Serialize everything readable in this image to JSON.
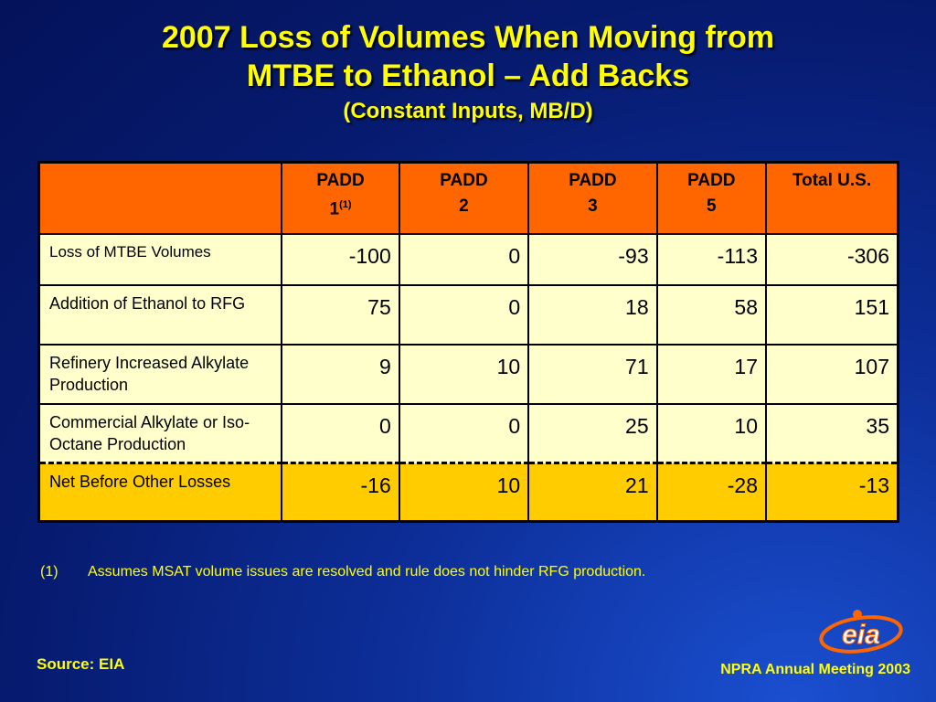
{
  "title": {
    "line1": "2007 Loss of Volumes When Moving from",
    "line2": "MTBE to Ethanol – Add Backs",
    "line3": "(Constant Inputs, MB/D)"
  },
  "table": {
    "headers": {
      "padd1_a": "PADD",
      "padd1_b": "1",
      "padd1_sup": "(1)",
      "padd2_a": "PADD",
      "padd2_b": "2",
      "padd3_a": "PADD",
      "padd3_b": "3",
      "padd5_a": "PADD",
      "padd5_b": "5",
      "total": "Total U.S."
    },
    "rows": [
      {
        "label": "Loss of MTBE Volumes",
        "values": [
          "-100",
          "0",
          "-93",
          "-113",
          "-306"
        ]
      },
      {
        "label": "Addition of Ethanol to RFG",
        "values": [
          "75",
          "0",
          "18",
          "58",
          "151"
        ]
      },
      {
        "label": "Refinery Increased Alkylate Production",
        "values": [
          "9",
          "10",
          "71",
          "17",
          "107"
        ]
      },
      {
        "label": "Commercial Alkylate or Iso-Octane Production",
        "values": [
          "0",
          "0",
          "25",
          "10",
          "35"
        ]
      },
      {
        "label": "Net Before Other Losses",
        "values": [
          "-16",
          "10",
          "21",
          "-28",
          "-13"
        ]
      }
    ]
  },
  "footnote": {
    "number": "(1)",
    "text": "Assumes MSAT volume issues are resolved and rule does not  hinder RFG production."
  },
  "source": "Source: EIA",
  "meeting": "NPRA Annual Meeting 2003",
  "logo_text": "eia",
  "colors": {
    "title": "#ffff00",
    "header_bg": "#ff6600",
    "row_bg": "#ffffcc",
    "net_row_bg": "#ffcc00",
    "background": "#0d2f9a"
  }
}
